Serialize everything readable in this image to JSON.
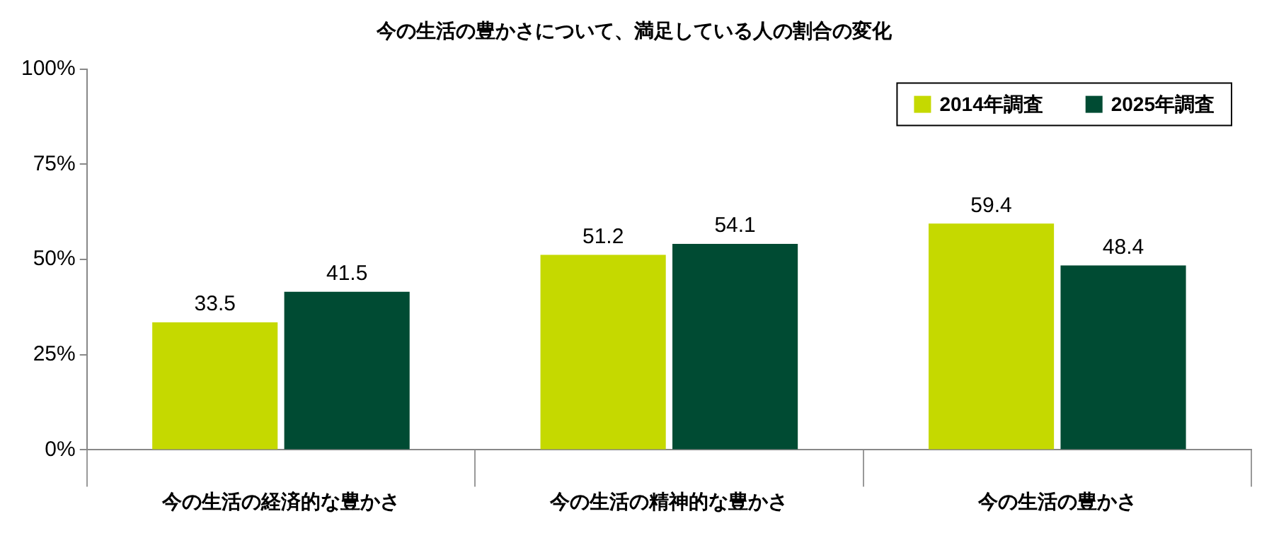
{
  "chart_data": {
    "type": "bar",
    "title": "今の生活の豊かさについて、満足している人の割合の変化",
    "categories": [
      "今の生活の経済的な豊かさ",
      "今の生活の精神的な豊かさ",
      "今の生活の豊かさ"
    ],
    "series": [
      {
        "name": "2014年調査",
        "color": "#c5d900",
        "values": [
          33.5,
          51.2,
          59.4
        ]
      },
      {
        "name": "2025年調査",
        "color": "#004b33",
        "values": [
          41.5,
          54.1,
          48.4
        ]
      }
    ],
    "ylim": [
      0,
      100
    ],
    "yticks": [
      {
        "value": 0,
        "label": "0%"
      },
      {
        "value": 25,
        "label": "25%"
      },
      {
        "value": 50,
        "label": "50%"
      },
      {
        "value": 75,
        "label": "75%"
      },
      {
        "value": 100,
        "label": "100%"
      }
    ],
    "grid": false,
    "legend": "top right",
    "data_labels": true
  }
}
